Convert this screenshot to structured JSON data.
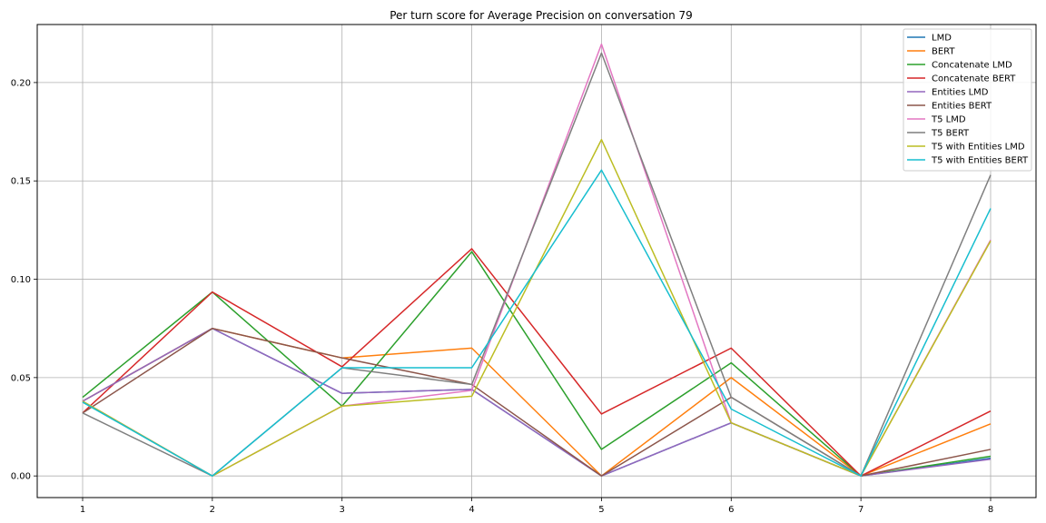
{
  "chart_data": {
    "type": "line",
    "title": "Per turn score for Average Precision on conversation 79",
    "xlabel": "",
    "ylabel": "",
    "x": [
      1,
      2,
      3,
      4,
      5,
      6,
      7,
      8
    ],
    "xlim": [
      0.65,
      8.35
    ],
    "ylim": [
      -0.011,
      0.2295
    ],
    "yticks": [
      0.0,
      0.05,
      0.1,
      0.15,
      0.2
    ],
    "yticklabels": [
      "0.00",
      "0.05",
      "0.10",
      "0.15",
      "0.20"
    ],
    "xticks": [
      1,
      2,
      3,
      4,
      5,
      6,
      7,
      8
    ],
    "xticklabels": [
      "1",
      "2",
      "3",
      "4",
      "5",
      "6",
      "7",
      "8"
    ],
    "grid": true,
    "legend_position": "top-right",
    "series": [
      {
        "name": "LMD",
        "color": "#1f77b4",
        "values": [
          0.038,
          0.075,
          0.042,
          0.044,
          0.0,
          0.027,
          0.0,
          0.009
        ]
      },
      {
        "name": "BERT",
        "color": "#ff7f0e",
        "values": [
          0.038,
          0.075,
          0.06,
          0.065,
          0.0,
          0.05,
          0.0,
          0.0265
        ]
      },
      {
        "name": "Concatenate LMD",
        "color": "#2ca02c",
        "values": [
          0.04,
          0.0935,
          0.0355,
          0.114,
          0.0135,
          0.0575,
          0.0,
          0.01
        ]
      },
      {
        "name": "Concatenate BERT",
        "color": "#d62728",
        "values": [
          0.032,
          0.0935,
          0.0555,
          0.1155,
          0.0315,
          0.065,
          0.0,
          0.033
        ]
      },
      {
        "name": "Entities LMD",
        "color": "#9467bd",
        "values": [
          0.038,
          0.075,
          0.042,
          0.044,
          0.0,
          0.027,
          0.0,
          0.0085
        ]
      },
      {
        "name": "Entities BERT",
        "color": "#8c564b",
        "values": [
          0.032,
          0.075,
          0.06,
          0.0465,
          0.0,
          0.04,
          0.0,
          0.0135
        ]
      },
      {
        "name": "T5 LMD",
        "color": "#e377c2",
        "values": [
          0.038,
          0.0,
          0.0355,
          0.0435,
          0.2195,
          0.027,
          0.0,
          0.12
        ]
      },
      {
        "name": "T5 BERT",
        "color": "#7f7f7f",
        "values": [
          0.032,
          0.0,
          0.055,
          0.0465,
          0.215,
          0.04,
          0.0,
          0.153
        ]
      },
      {
        "name": "T5 with Entities LMD",
        "color": "#bcbd22",
        "values": [
          0.038,
          0.0,
          0.0355,
          0.0405,
          0.171,
          0.027,
          0.0,
          0.1195
        ]
      },
      {
        "name": "T5 with Entities BERT",
        "color": "#17becf",
        "values": [
          0.0375,
          0.0,
          0.055,
          0.055,
          0.1555,
          0.034,
          0.0,
          0.136
        ]
      }
    ]
  }
}
